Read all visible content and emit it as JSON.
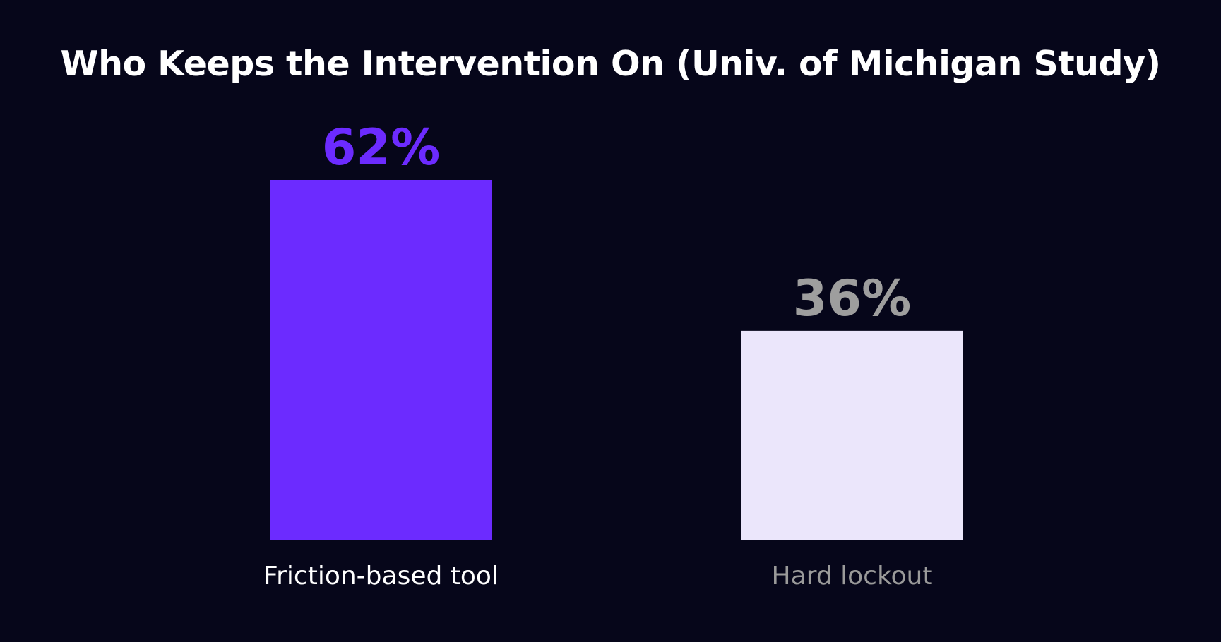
{
  "chart_data": {
    "type": "bar",
    "title": "Who Keeps the Intervention On (Univ. of Michigan Study)",
    "categories": [
      "Friction-based tool",
      "Hard lockout"
    ],
    "values": [
      62,
      36
    ],
    "data_labels": [
      "62%",
      "36%"
    ],
    "unit": "%",
    "ylim": [
      0,
      62
    ],
    "grid": false,
    "legend": "none",
    "colors": {
      "background": "#06061a",
      "bars": [
        "#6c2bff",
        "#ebe6fb"
      ],
      "value_labels": [
        "#6c2bff",
        "#9e9e9e"
      ],
      "category_labels": [
        "#ffffff",
        "#9a9a9a"
      ],
      "title": "#ffffff"
    }
  }
}
